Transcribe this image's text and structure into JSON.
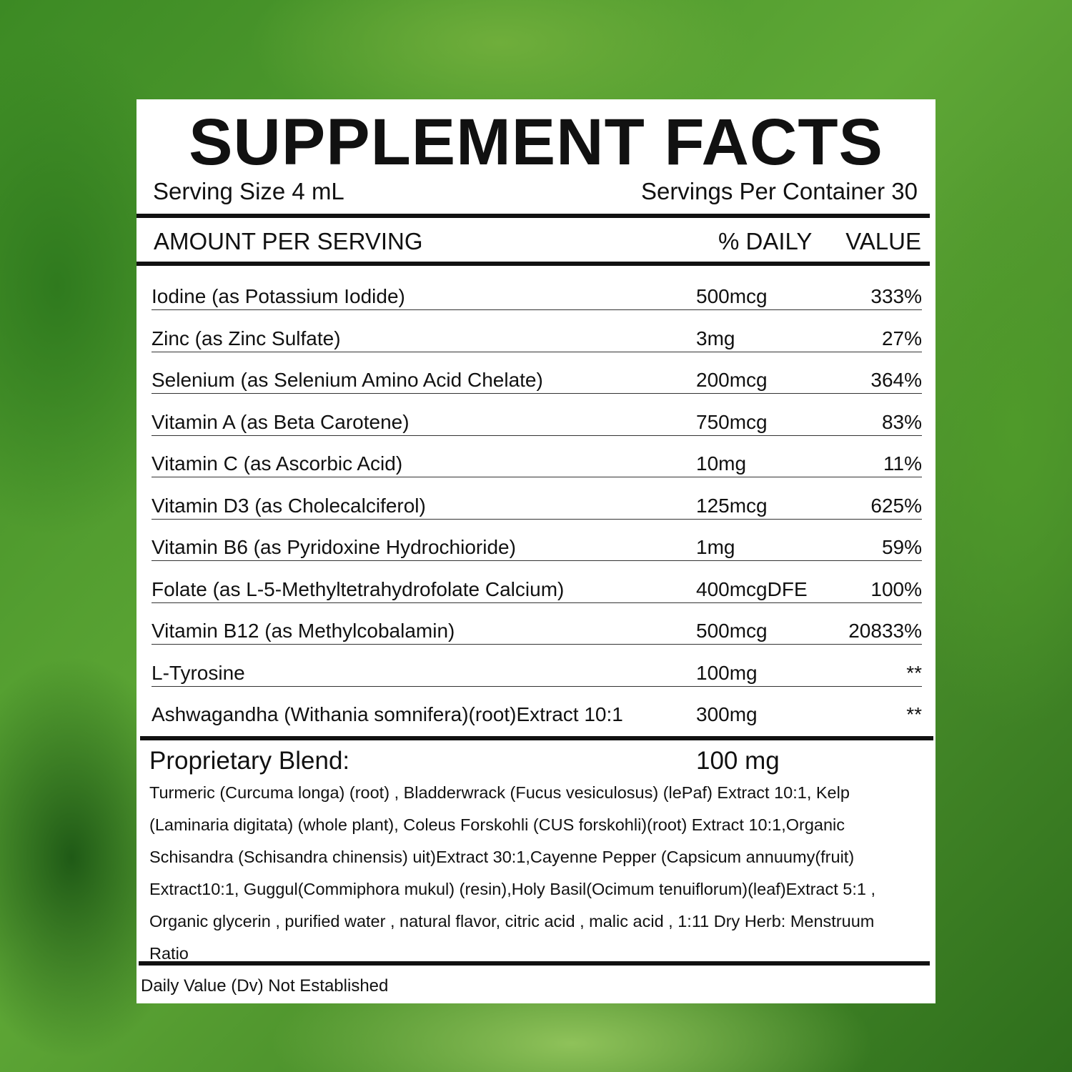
{
  "title": "SUPPLEMENT FACTS",
  "serving_size": "Serving Size 4 mL",
  "servings_per_container": "Servings Per Container 30",
  "header": {
    "amount": "AMOUNT PER SERVING",
    "daily": "% DAILY",
    "value": "VALUE"
  },
  "rows": [
    {
      "name": "Iodine (as Potassium Iodide)",
      "amount": "500mcg",
      "dv": "333%"
    },
    {
      "name": "Zinc (as Zinc Sulfate)",
      "amount": "3mg",
      "dv": "27%"
    },
    {
      "name": "Selenium (as Selenium Amino Acid Chelate)",
      "amount": "200mcg",
      "dv": "364%"
    },
    {
      "name": "Vitamin A (as Beta Carotene)",
      "amount": "750mcg",
      "dv": "83%"
    },
    {
      "name": "Vitamin C (as Ascorbic Acid)",
      "amount": "10mg",
      "dv": "11%"
    },
    {
      "name": "Vitamin D3 (as Cholecalciferol)",
      "amount": "125mcg",
      "dv": "625%"
    },
    {
      "name": "Vitamin B6 (as Pyridoxine Hydrochioride)",
      "amount": "1mg",
      "dv": "59%"
    },
    {
      "name": "Folate (as L-5-Methyltetrahydrofolate Calcium)",
      "amount": "400mcgDFE",
      "dv": "100%"
    },
    {
      "name": "Vitamin B12 (as Methylcobalamin)",
      "amount": "500mcg",
      "dv": "20833%"
    },
    {
      "name": "L-Tyrosine",
      "amount": "100mg",
      "dv": "**"
    },
    {
      "name": "Ashwagandha (Withania somnifera)(root)Extract 10:1",
      "amount": "300mg",
      "dv": "**"
    }
  ],
  "blend": {
    "label": "Proprietary Blend:",
    "amount": "100 mg",
    "text": "Turmeric (Curcuma longa) (root) , Bladderwrack  (Fucus vesiculosus) (lePaf) Extract 10:1, Kelp (Laminaria digitata) (whole plant), Coleus Forskohli (CUS forskohli)(root) Extract 10:1,Organic Schisandra (Schisandra chinensis) uit)Extract 30:1,Cayenne Pepper (Capsicum annuumy(fruit) Extract10:1, Guggul(Commiphora mukul) (resin),Holy Basil(Ocimum tenuiflorum)(leaf)Extract 5:1 , Organic glycerin , purified water , natural flavor, citric acid , malic acid , 1:11 Dry Herb: Menstruum Ratio"
  },
  "footnote": "Daily Value (Dv) Not Established"
}
